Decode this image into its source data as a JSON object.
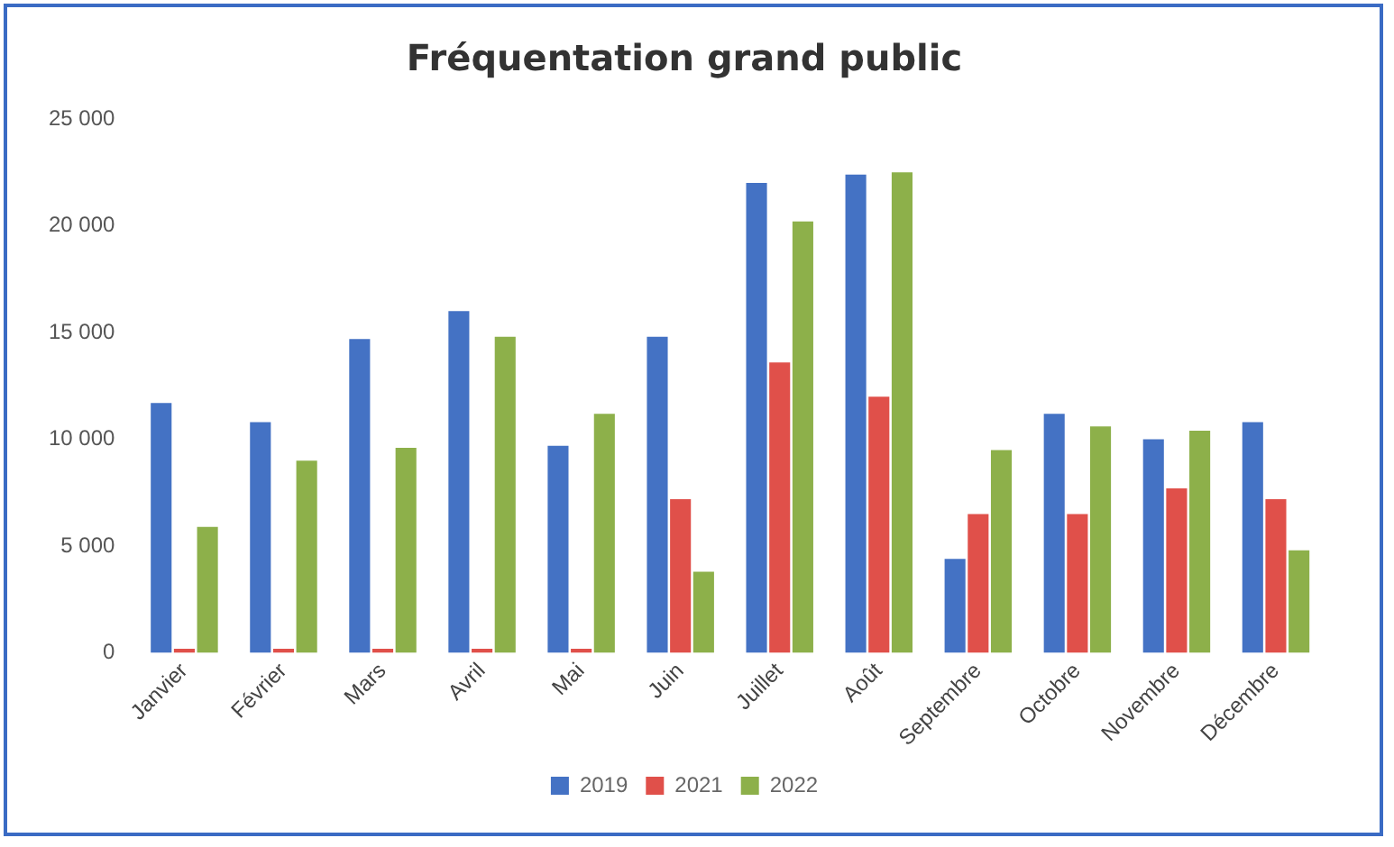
{
  "chart_data": {
    "type": "bar",
    "title": "Fréquentation grand public",
    "categories": [
      "Janvier",
      "Février",
      "Mars",
      "Avril",
      "Mai",
      "Juin",
      "Juillet",
      "Août",
      "Septembre",
      "Octobre",
      "Novembre",
      "Décembre"
    ],
    "series": [
      {
        "name": "2019",
        "color": "#4472c4",
        "values": [
          11700,
          10800,
          14700,
          16000,
          9700,
          14800,
          22000,
          22400,
          4400,
          11200,
          10000,
          10800
        ]
      },
      {
        "name": "2021",
        "color": "#e0504a",
        "values": [
          200,
          200,
          200,
          200,
          200,
          7200,
          13600,
          12000,
          6500,
          6500,
          7700,
          7200
        ]
      },
      {
        "name": "2022",
        "color": "#8db04a",
        "values": [
          5900,
          9000,
          9600,
          14800,
          11200,
          3800,
          20200,
          22500,
          9500,
          10600,
          10400,
          4800
        ]
      }
    ],
    "ylim": [
      0,
      25000
    ],
    "yticks": [
      0,
      {
        "value": 5000,
        "label": "5 000"
      },
      {
        "value": 10000,
        "label": "10 000"
      },
      {
        "value": 15000,
        "label": "15 000"
      },
      {
        "value": 20000,
        "label": "20 000"
      },
      {
        "value": 25000,
        "label": "25 000"
      }
    ],
    "grid": false,
    "legend": "bottom"
  }
}
